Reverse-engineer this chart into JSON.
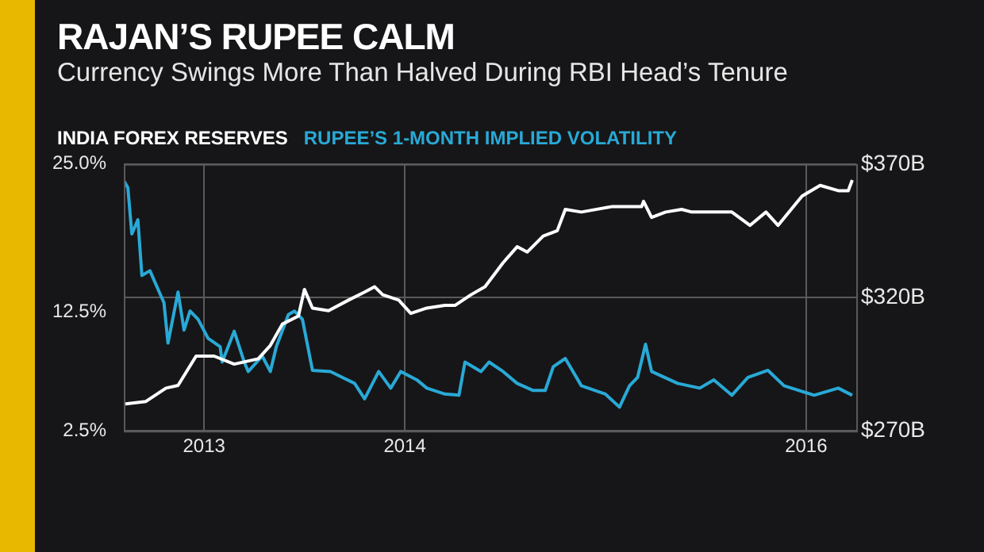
{
  "chart_data": {
    "type": "line",
    "title": "RAJAN’S RUPEE CALM",
    "subtitle": "Currency Swings More Than Halved During RBI Head’s Tenure",
    "xlim": [
      2012.6,
      2016.25
    ],
    "xticks": [
      2013,
      2014,
      2016
    ],
    "ylim": [
      2.5,
      25
    ],
    "yticks": [
      {
        "value": 25,
        "label": "25.0%"
      },
      {
        "value": 12.5,
        "label": "12.5%"
      },
      {
        "value": 2.5,
        "label": "2.5%"
      }
    ],
    "y2lim": [
      270,
      370
    ],
    "y2ticks": [
      {
        "value": 370,
        "label": "$370B"
      },
      {
        "value": 320,
        "label": "$320B"
      },
      {
        "value": 270,
        "label": "$270B"
      }
    ],
    "grid": true,
    "legend": "top left",
    "marker": "none",
    "line_style": "solid",
    "series": [
      {
        "name": "INDIA FOREX RESERVES",
        "color": "#ffffff",
        "axis": "y2",
        "x": [
          2012.6,
          2012.71,
          2012.81,
          2012.87,
          2012.96,
          2013.05,
          2013.15,
          2013.27,
          2013.33,
          2013.39,
          2013.47,
          2013.5,
          2013.54,
          2013.62,
          2013.72,
          2013.8,
          2013.85,
          2013.89,
          2013.97,
          2014.03,
          2014.11,
          2014.2,
          2014.25,
          2014.33,
          2014.4,
          2014.49,
          2014.56,
          2014.61,
          2014.69,
          2014.76,
          2014.8,
          2014.88,
          2015.03,
          2015.18,
          2015.19,
          2015.23,
          2015.3,
          2015.38,
          2015.43,
          2015.63,
          2015.72,
          2015.8,
          2015.86,
          2015.98,
          2016.07,
          2016.16,
          2016.21,
          2016.23
        ],
        "values": [
          280,
          281,
          286,
          287,
          298,
          298,
          295,
          297,
          302,
          310,
          313,
          323,
          316,
          315,
          319,
          322,
          324,
          321,
          319,
          314,
          316,
          317,
          317,
          321,
          324,
          333,
          339,
          337,
          343,
          345,
          353,
          352,
          354,
          354,
          356,
          350,
          352,
          353,
          352,
          352,
          347,
          352,
          347,
          358,
          362,
          360,
          360,
          364
        ]
      },
      {
        "name": "RUPEE’S 1-MONTH IMPLIED VOLATILITY",
        "color": "#29a9d6",
        "axis": "y",
        "x": [
          2012.6,
          2012.62,
          2012.64,
          2012.67,
          2012.69,
          2012.73,
          2012.8,
          2012.82,
          2012.87,
          2012.9,
          2012.93,
          2012.97,
          2013.02,
          2013.08,
          2013.09,
          2013.15,
          2013.2,
          2013.22,
          2013.29,
          2013.33,
          2013.36,
          2013.42,
          2013.45,
          2013.49,
          2013.54,
          2013.63,
          2013.69,
          2013.75,
          2013.8,
          2013.87,
          2013.93,
          2013.98,
          2014.06,
          2014.11,
          2014.2,
          2014.27,
          2014.3,
          2014.38,
          2014.42,
          2014.49,
          2014.56,
          2014.64,
          2014.7,
          2014.74,
          2014.8,
          2014.88,
          2015,
          2015.07,
          2015.12,
          2015.16,
          2015.2,
          2015.23,
          2015.36,
          2015.47,
          2015.54,
          2015.63,
          2015.71,
          2015.81,
          2015.89,
          2016.04,
          2016.16,
          2016.23
        ],
        "values": [
          23.6,
          23,
          19.1,
          20.3,
          15.6,
          16,
          13.3,
          9.9,
          14.2,
          11,
          12.6,
          11.9,
          10.3,
          9.6,
          8.3,
          10.9,
          8.3,
          7.5,
          8.8,
          7.5,
          9.6,
          12.3,
          12.6,
          11.9,
          7.6,
          7.5,
          7,
          6.5,
          5.2,
          7.5,
          6.1,
          7.5,
          6.8,
          6.1,
          5.6,
          5.5,
          8.3,
          7.5,
          8.3,
          7.5,
          6.5,
          5.9,
          5.9,
          7.9,
          8.6,
          6.3,
          5.6,
          4.5,
          6.3,
          7,
          9.8,
          7.5,
          6.5,
          6.1,
          6.8,
          5.5,
          7,
          7.6,
          6.3,
          5.5,
          6.1,
          5.5
        ]
      }
    ]
  }
}
